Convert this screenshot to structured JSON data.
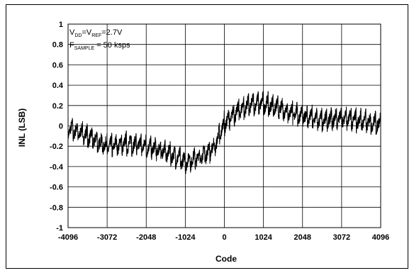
{
  "chart_data": {
    "type": "line",
    "title": "",
    "xlabel": "Code",
    "ylabel": "INL (LSB)",
    "xlim": [
      -4096,
      4096
    ],
    "ylim": [
      -1,
      1
    ],
    "xticks": [
      -4096,
      -3072,
      -2048,
      -1024,
      0,
      1024,
      2048,
      3072,
      4096
    ],
    "yticks": [
      1,
      0.8,
      0.6,
      0.4,
      0.2,
      0,
      -0.2,
      -0.4,
      -0.6,
      -0.8,
      -1
    ],
    "xtick_labels": [
      "-4096",
      "-3072",
      "-2048",
      "-1024",
      "0",
      "1024",
      "2048",
      "3072",
      "4096"
    ],
    "ytick_labels": [
      "1",
      "0.8",
      "0.6",
      "0.4",
      "0.2",
      "0",
      "-0.2",
      "-0.4",
      "-0.6",
      "-0.8",
      "-1"
    ],
    "grid": true,
    "annotations": {
      "line1": {
        "p1": "V",
        "s1": "DD",
        "p2": "=V",
        "s2": "REF",
        "p3": "=2.7V"
      },
      "line2": {
        "p1": "F",
        "s1": "SAMPLE",
        "p2": " = 50 ksps"
      }
    },
    "series": [
      {
        "color": "#000000",
        "x": [
          -4096,
          -3584,
          -3072,
          -2560,
          -2048,
          -1536,
          -1024,
          -768,
          -512,
          -256,
          0,
          256,
          512,
          768,
          1024,
          1536,
          2048,
          2560,
          3072,
          3584,
          4096
        ],
        "y": [
          -0.02,
          -0.1,
          -0.2,
          -0.17,
          -0.2,
          -0.25,
          -0.35,
          -0.32,
          -0.28,
          -0.2,
          0.02,
          0.12,
          0.18,
          0.22,
          0.22,
          0.16,
          0.1,
          0.05,
          0.08,
          0.05,
          0.02
        ]
      }
    ]
  }
}
